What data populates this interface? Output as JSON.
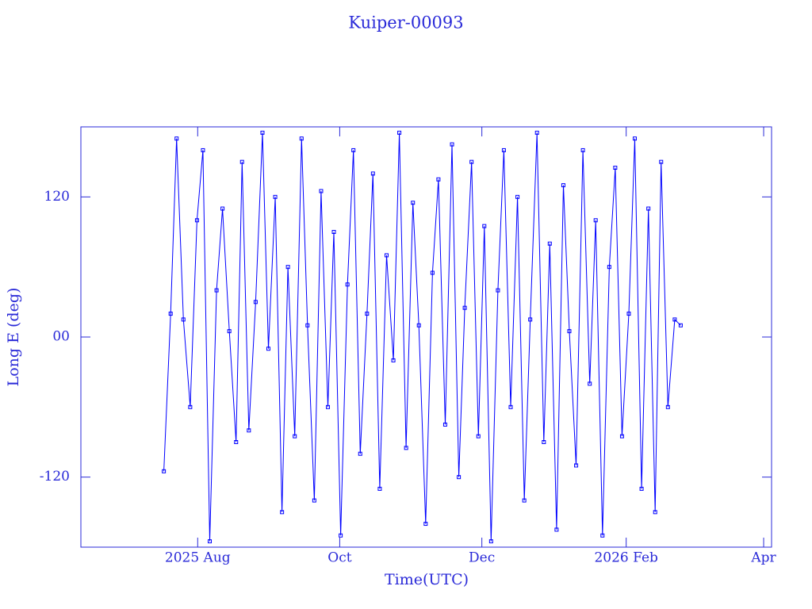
{
  "chart_data": {
    "type": "line",
    "title": "Kuiper-00093",
    "x_label": "Time(UTC)",
    "y_label": "Long E (deg)",
    "xlim": [
      2025.4434,
      2026.2559
    ],
    "ylim": [
      -180,
      180
    ],
    "xticks": [
      {
        "value": 2025.5808,
        "label": "2025 Aug"
      },
      {
        "value": 2025.7479,
        "label": "Oct"
      },
      {
        "value": 2025.9151,
        "label": "Dec"
      },
      {
        "value": 2026.0849,
        "label": "2026 Feb"
      },
      {
        "value": 2026.2466,
        "label": "Apr"
      }
    ],
    "yticks": [
      -120,
      {
        "value": 0,
        "label": "00"
      },
      120
    ],
    "series": [
      {
        "color": "#0000ff",
        "x": [
          2025.541,
          2025.549,
          2025.556,
          2025.564,
          2025.572,
          2025.58,
          2025.587,
          2025.595,
          2025.603,
          2025.61,
          2025.618,
          2025.626,
          2025.633,
          2025.641,
          2025.649,
          2025.657,
          2025.664,
          2025.672,
          2025.68,
          2025.687,
          2025.695,
          2025.703,
          2025.71,
          2025.718,
          2025.726,
          2025.734,
          2025.741,
          2025.749,
          2025.757,
          2025.764,
          2025.772,
          2025.78,
          2025.787,
          2025.795,
          2025.803,
          2025.811,
          2025.818,
          2025.826,
          2025.834,
          2025.841,
          2025.849,
          2025.857,
          2025.864,
          2025.872,
          2025.88,
          2025.888,
          2025.895,
          2025.903,
          2025.911,
          2025.918,
          2025.926,
          2025.934,
          2025.941,
          2025.949,
          2025.957,
          2025.965,
          2025.972,
          2025.98,
          2025.988,
          2025.995,
          2026.003,
          2026.011,
          2026.018,
          2026.026,
          2026.034,
          2026.042,
          2026.049,
          2026.057,
          2026.065,
          2026.072,
          2026.08,
          2026.088,
          2026.095,
          2026.103,
          2026.111,
          2026.119,
          2026.126,
          2026.134,
          2026.142,
          2026.149
        ],
        "values": [
          -115,
          20,
          170,
          15,
          -60,
          100,
          160,
          -175,
          40,
          110,
          5,
          -90,
          150,
          -80,
          30,
          175,
          -10,
          120,
          -150,
          60,
          -85,
          170,
          10,
          -140,
          125,
          -60,
          90,
          -170,
          45,
          160,
          -100,
          20,
          140,
          -130,
          70,
          -20,
          175,
          -95,
          115,
          10,
          -160,
          55,
          135,
          -75,
          165,
          -120,
          25,
          150,
          -85,
          95,
          -175,
          40,
          160,
          -60,
          120,
          -140,
          15,
          175,
          -90,
          80,
          -165,
          130,
          5,
          -110,
          160,
          -40,
          100,
          -170,
          60,
          145,
          -85,
          20,
          170,
          -130,
          110,
          -150,
          150,
          -60,
          15,
          10
        ]
      }
    ]
  }
}
